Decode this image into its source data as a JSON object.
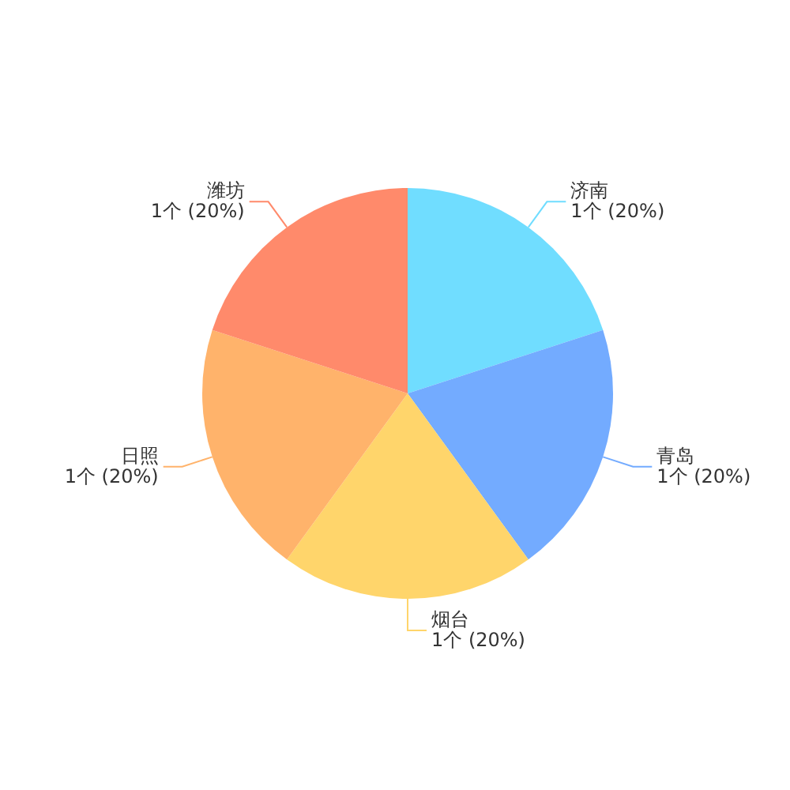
{
  "chart_data": {
    "type": "pie",
    "categories": [
      "济南",
      "青岛",
      "烟台",
      "日照",
      "潍坊"
    ],
    "values": [
      1,
      1,
      1,
      1,
      1
    ],
    "colors": [
      "#70ddff",
      "#73abff",
      "#ffd56b",
      "#ffb36b",
      "#ff8a6b"
    ],
    "value_labels": [
      "1个 (20%)",
      "1个 (20%)",
      "1个 (20%)",
      "1个 (20%)",
      "1个 (20%)"
    ],
    "legend": false
  }
}
